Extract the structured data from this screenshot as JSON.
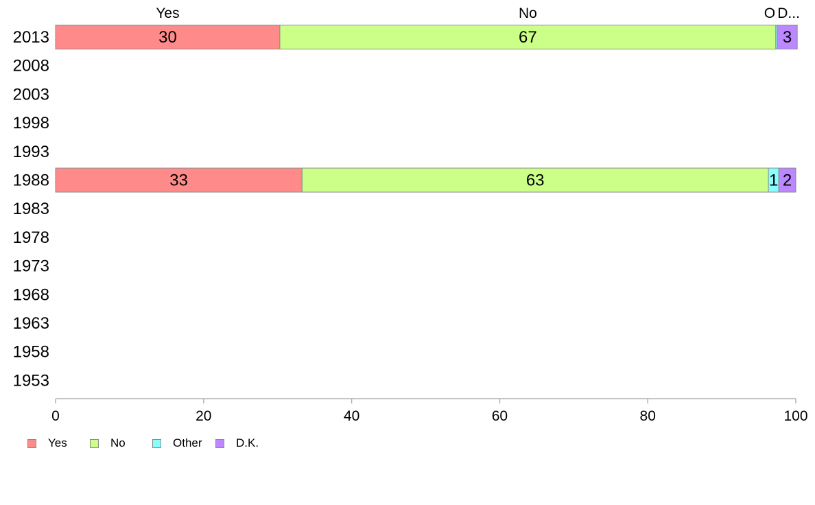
{
  "chart_data": {
    "type": "bar",
    "orientation": "horizontal",
    "stacked": true,
    "categories": [
      "2013",
      "2008",
      "2003",
      "1998",
      "1993",
      "1988",
      "1983",
      "1978",
      "1973",
      "1968",
      "1963",
      "1958",
      "1953"
    ],
    "series": [
      {
        "name": "Yes",
        "color": "#ff8a8a",
        "values": [
          30.3,
          null,
          null,
          null,
          null,
          33.3,
          null,
          null,
          null,
          null,
          null,
          null,
          null
        ],
        "labels": [
          "30",
          null,
          null,
          null,
          null,
          "33",
          null,
          null,
          null,
          null,
          null,
          null,
          null
        ]
      },
      {
        "name": "No",
        "color": "#ccff88",
        "values": [
          67.0,
          null,
          null,
          null,
          null,
          63.0,
          null,
          null,
          null,
          null,
          null,
          null,
          null
        ],
        "labels": [
          "67",
          null,
          null,
          null,
          null,
          "63",
          null,
          null,
          null,
          null,
          null,
          null,
          null
        ]
      },
      {
        "name": "Other",
        "color": "#88ffff",
        "values": [
          0.2,
          null,
          null,
          null,
          null,
          1.4,
          null,
          null,
          null,
          null,
          null,
          null,
          null
        ],
        "labels": [
          null,
          null,
          null,
          null,
          null,
          "1",
          null,
          null,
          null,
          null,
          null,
          null,
          null
        ]
      },
      {
        "name": "D.K.",
        "color": "#bb88ff",
        "values": [
          2.7,
          null,
          null,
          null,
          null,
          2.3,
          null,
          null,
          null,
          null,
          null,
          null,
          null
        ],
        "labels": [
          "3",
          null,
          null,
          null,
          null,
          "2",
          null,
          null,
          null,
          null,
          null,
          null,
          null
        ]
      }
    ],
    "top_labels": [
      "Yes",
      "No",
      "O",
      "D..."
    ],
    "xlim": [
      0,
      100
    ],
    "xticks": [
      0,
      20,
      40,
      60,
      80,
      100
    ],
    "grid": false,
    "legend_position": "bottom-left"
  },
  "legend": {
    "items": [
      {
        "label": "Yes",
        "color": "#ff8a8a"
      },
      {
        "label": "No",
        "color": "#ccff88"
      },
      {
        "label": "Other",
        "color": "#88ffff"
      },
      {
        "label": "D.K.",
        "color": "#bb88ff"
      }
    ]
  }
}
